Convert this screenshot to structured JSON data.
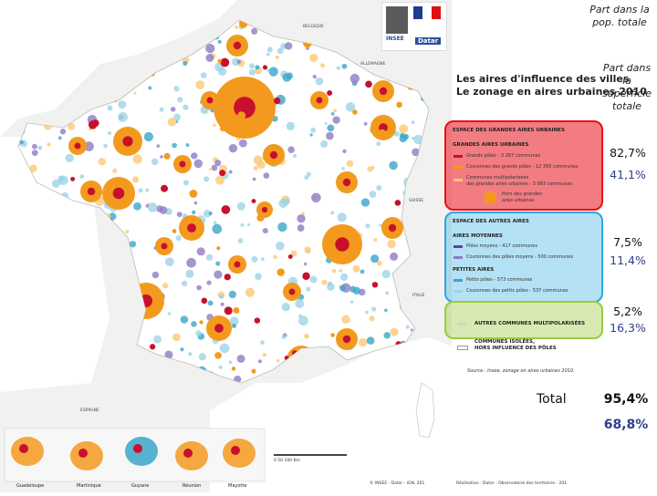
{
  "map": {
    "title_line1": "Les aires d'influence des villes",
    "title_line2": "Le zonage en aires urbaines 2010",
    "labels": {
      "belgique": "BELGIQUE",
      "allemagne": "ALLEMAGNE",
      "suisse": "SUISSE",
      "italie": "ITALIE",
      "espagne": "ESPAGNE"
    },
    "legend": {
      "espace_grandes": "ESPACE DES GRANDES AIRES URBAINES",
      "grandes_aires": "GRANDES AIRES URBAINES",
      "grands_poles": "Grands pôles - 3 287 communes",
      "couronnes_grands": "Couronnes des grands pôles - 12 395 communes",
      "multipol_1": "Communes multipolarisées",
      "multipol_2": "des grandes aires urbaines - 3 993 communes",
      "hors_1": "Hors des grandes",
      "hors_2": "aires urbaines",
      "espace_autres": "ESPACE DES AUTRES AIRES",
      "aires_moyennes": "AIRES MOYENNES",
      "poles_moyens": "Pôles moyens - 417 communes",
      "couronnes_moyens": "Couronnes des pôles moyens - 500 communes",
      "petites_aires": "PETITES AIRES",
      "petits_poles": "Petits pôles - 573 communes",
      "couronnes_petits": "Couronnes des petits pôles - 537 communes",
      "autres_multipol": "AUTRES COMMUNES MULTIPOLARISÉES",
      "isolees_1": "COMMUNES ISOLÉES,",
      "isolees_2": "HORS INFLUENCE DES PÔLES",
      "source": "Source : Insee, zonage en aires urbaines 2010."
    },
    "dom": [
      "Guadeloupe",
      "Martinique",
      "Guyane",
      "Réunion",
      "Mayotte"
    ],
    "scale": "0      50      100 Km",
    "footer_left": "© INSEE - Datar - IGN, 201",
    "footer_right": "Réalisation : Datar - Observatoire des territoires - 201",
    "logo_insee": "INSEE",
    "logo_datar": "Datar"
  },
  "columns": {
    "pop_header": "Part dans la pop. totale",
    "sup_header": "Part dans la superficie totale"
  },
  "rows": [
    {
      "pop": "82,7%",
      "sup": "41,1%"
    },
    {
      "pop": "7,5%",
      "sup": "11,4%"
    },
    {
      "pop": "5,2%",
      "sup": "16,3%"
    }
  ],
  "total": {
    "label": "Total",
    "pop": "95,4%",
    "sup": "68,8%"
  },
  "colors": {
    "red_box": "#e8101b",
    "blue_box": "#29a8e0",
    "green_box": "#9bcb3b",
    "grand_pole": "#c8102e",
    "couronne": "#f39a1e",
    "multipol": "#fcc875",
    "pole_moyen": "#6a3d9a",
    "couronne_moyen": "#8e7cc3",
    "petit_pole": "#3aa6c9",
    "couronne_petit": "#9fd3e6",
    "total_sup": "#2f3e8f"
  }
}
